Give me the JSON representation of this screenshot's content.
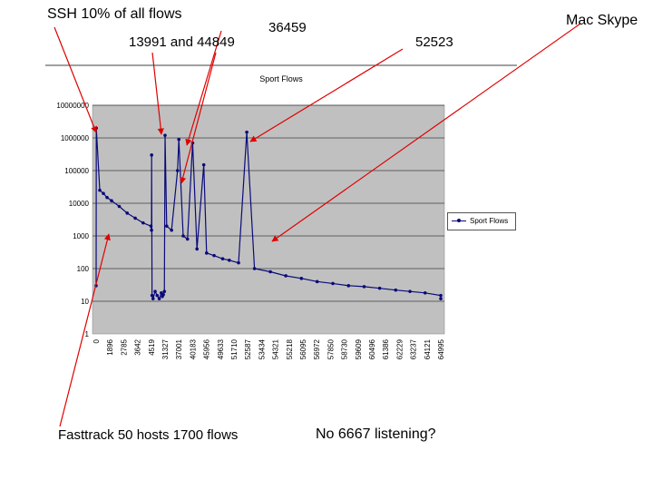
{
  "annotations": {
    "ssh": "SSH 10% of all flows",
    "ports_13991": "13991 and 44849",
    "port_36459": "36459",
    "port_52523": "52523",
    "mac_skype": "Mac Skype",
    "fasttrack": "Fasttrack 50 hosts 1700 flows",
    "no_6667": "No 6667 listening?"
  },
  "colors": {
    "series": "#0a0a7a",
    "plot_bg": "#c0c0c0",
    "arrow": "#e00000"
  },
  "chart_data": {
    "type": "line",
    "title": "Sport Flows",
    "xlabel": "",
    "ylabel": "",
    "y_scale": "log",
    "ylim": [
      1,
      10000000
    ],
    "xlim": [
      0,
      65535
    ],
    "grid": true,
    "legend": "right",
    "y_ticks": [
      "1",
      "10",
      "100",
      "1000",
      "10000",
      "100000",
      "1000000",
      "10000000"
    ],
    "x_ticks": [
      "0",
      "1896",
      "2785",
      "3642",
      "4519",
      "31327",
      "37001",
      "40183",
      "45956",
      "49633",
      "51710",
      "52587",
      "53434",
      "54321",
      "55218",
      "56095",
      "56972",
      "57850",
      "58730",
      "59609",
      "60496",
      "61386",
      "62229",
      "63237",
      "64121",
      "64995"
    ],
    "series": [
      {
        "name": "Sport Flows",
        "x": [
          0,
          22,
          500,
          1000,
          1500,
          2000,
          2500,
          3000,
          3500,
          4000,
          4500,
          5000,
          5200,
          6000,
          8000,
          12000,
          16000,
          20000,
          24000,
          26000,
          28000,
          30000,
          31327,
          32000,
          34000,
          36459,
          37001,
          38000,
          39000,
          40183,
          42000,
          44849,
          46000,
          48000,
          50000,
          51000,
          52000,
          52523,
          53000,
          54000,
          55000,
          56000,
          57000,
          58000,
          59000,
          60000,
          61000,
          62000,
          63000,
          64000,
          65000,
          65535
        ],
        "y": [
          30,
          2000000,
          25000,
          20000,
          15000,
          12000,
          8000,
          5000,
          3500,
          2500,
          2000,
          1500,
          300000,
          15,
          12,
          20,
          15,
          12,
          18,
          14,
          16,
          20,
          1200000,
          2000,
          1500,
          100000,
          900000,
          1000,
          800,
          700000,
          400,
          150000,
          300,
          250,
          200,
          180,
          150,
          1500000,
          100,
          80,
          60,
          50,
          40,
          35,
          30,
          28,
          25,
          22,
          20,
          18,
          15,
          12
        ]
      }
    ]
  }
}
